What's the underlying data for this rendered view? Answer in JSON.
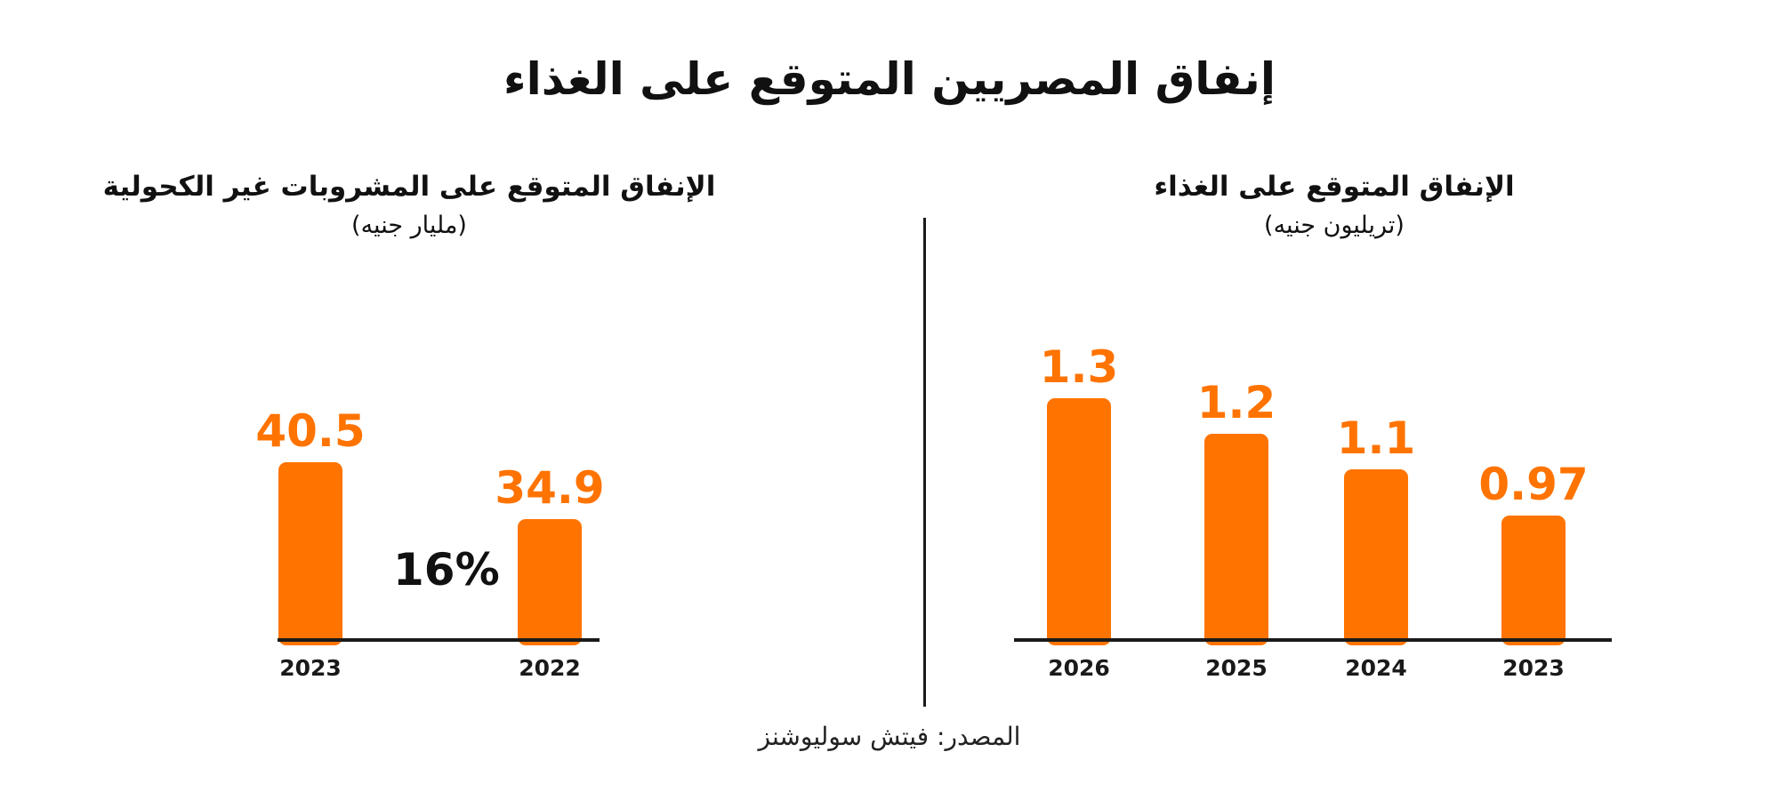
{
  "title": "إنفاق المصريين المتوقع على الغذاء",
  "source": "المصدر: فيتش سوليوشنز",
  "colors": {
    "bar": "#ff7300",
    "text": "#111111"
  },
  "chart_data": [
    {
      "type": "bar",
      "title": "الإنفاق المتوقع على الغذاء",
      "unit": "(تريليون جنيه)",
      "categories": [
        "2026",
        "2025",
        "2024",
        "2023"
      ],
      "values": [
        1.3,
        1.2,
        1.1,
        0.97
      ],
      "value_labels": [
        "1.3",
        "1.2",
        "1.1",
        "0.97"
      ],
      "ylim": [
        0.62,
        1.3
      ],
      "legend": "none",
      "grid": false
    },
    {
      "type": "bar",
      "title": "الإنفاق المتوقع على المشروبات غير الكحولية",
      "unit": "(مليار جنيه)",
      "categories": [
        "2023",
        "2022"
      ],
      "values": [
        40.5,
        34.9
      ],
      "value_labels": [
        "40.5",
        "34.9"
      ],
      "annotation": "16%",
      "ylim": [
        23.0,
        40.5
      ],
      "legend": "none",
      "grid": false
    }
  ]
}
